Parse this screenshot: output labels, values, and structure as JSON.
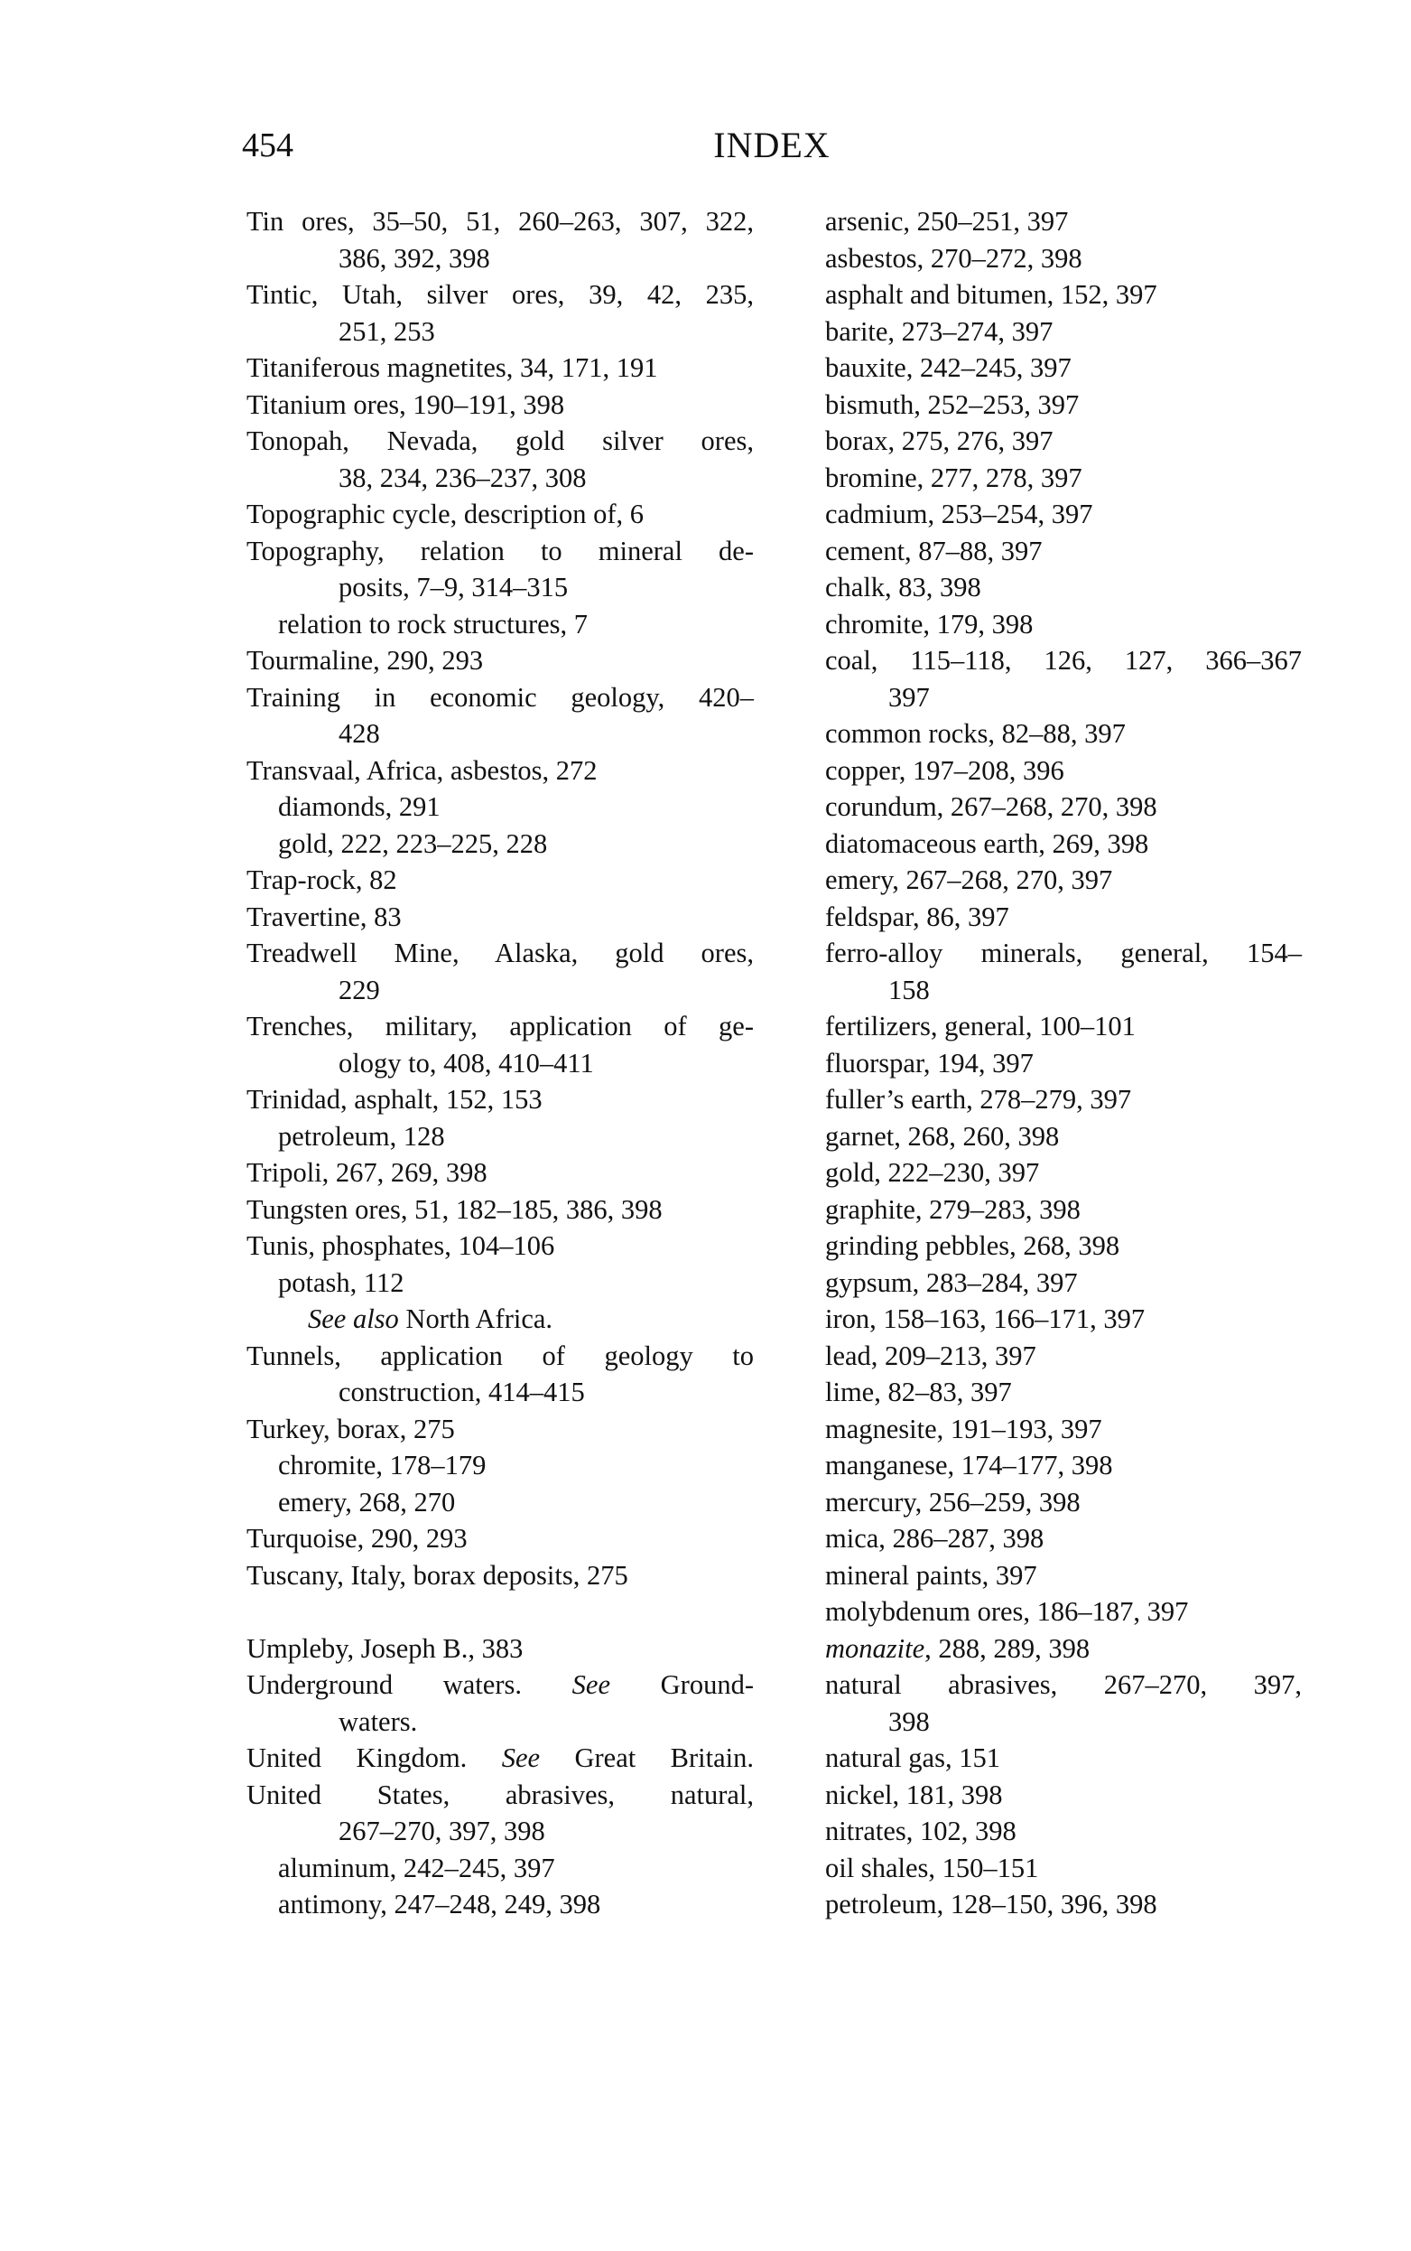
{
  "header": {
    "page_number": "454",
    "title": "INDEX"
  },
  "left_column": [
    "Tin ores, 35–50, 51, 260–263, 307, 322,",
    "386, 392, 398",
    "Tintic, Utah, silver ores, 39, 42, 235,",
    "251, 253",
    "Titaniferous magnetites, 34, 171, 191",
    "Titanium ores, 190–191, 398",
    "Tonopah, Nevada, gold silver ores,",
    "38, 234, 236–237, 308",
    "Topographic cycle, description of, 6",
    "Topography, relation to mineral de-",
    "posits, 7–9, 314–315",
    "relation to rock structures, 7",
    "Tourmaline, 290, 293",
    "Training in economic geology, 420–",
    "428",
    "Transvaal, Africa, asbestos, 272",
    "diamonds, 291",
    "gold, 222, 223–225, 228",
    "Trap-rock, 82",
    "Travertine, 83",
    "Treadwell Mine, Alaska, gold ores,",
    "229",
    "Trenches, military, application of ge-",
    "ology to, 408, 410–411",
    "Trinidad, asphalt, 152, 153",
    "petroleum, 128",
    "Tripoli, 267, 269, 398",
    "Tungsten ores, 51, 182–185, 386, 398",
    "Tunis, phosphates, 104–106",
    "potash, 112",
    {
      "em": "See also",
      "text": " North Africa."
    },
    "Tunnels, application of geology to",
    "construction, 414–415",
    "Turkey, borax, 275",
    "chromite, 178–179",
    "emery, 268, 270",
    "Turquoise, 290, 293",
    "Tuscany, Italy, borax deposits, 275",
    "",
    "Umpleby, Joseph B., 383",
    {
      "text": "Underground waters. ",
      "em": "See",
      "after": " Ground-"
    },
    "waters.",
    {
      "text": "United Kingdom. ",
      "em": "See",
      "after": " Great Britain."
    },
    "United States, abrasives, natural,",
    "267–270, 397, 398",
    "aluminum, 242–245, 397",
    "antimony, 247–248, 249, 398"
  ],
  "right_column": [
    "arsenic, 250–251, 397",
    "asbestos, 270–272, 398",
    "asphalt and bitumen, 152, 397",
    "barite, 273–274, 397",
    "bauxite, 242–245, 397",
    "bismuth, 252–253, 397",
    "borax, 275, 276, 397",
    "bromine, 277, 278, 397",
    "cadmium, 253–254, 397",
    "cement, 87–88, 397",
    "chalk, 83, 398",
    "chromite, 179, 398",
    "coal, 115–118, 126, 127, 366–367",
    "397",
    "common rocks, 82–88, 397",
    "copper, 197–208, 396",
    "corundum, 267–268, 270, 398",
    "diatomaceous earth, 269, 398",
    "emery, 267–268, 270, 397",
    "feldspar, 86, 397",
    "ferro-alloy minerals, general, 154–",
    "158",
    "fertilizers, general, 100–101",
    "fluorspar, 194, 397",
    "fuller’s earth, 278–279, 397",
    "garnet, 268, 260, 398",
    "gold, 222–230, 397",
    "graphite, 279–283, 398",
    "grinding pebbles, 268, 398",
    "gypsum, 283–284, 397",
    "iron, 158–163, 166–171, 397",
    "lead, 209–213, 397",
    "lime, 82–83, 397",
    "magnesite, 191–193, 397",
    "manganese, 174–177, 398",
    "mercury, 256–259, 398",
    "mica, 286–287, 398",
    "mineral paints, 397",
    "molybdenum ores, 186–187, 397",
    {
      "em": "monazite",
      "text": ", 288, 289, 398"
    },
    "natural abrasives, 267–270, 397,",
    "398",
    "natural gas, 151",
    "nickel, 181, 398",
    "nitrates, 102, 398",
    "oil shales, 150–151",
    "petroleum, 128–150, 396, 398"
  ]
}
